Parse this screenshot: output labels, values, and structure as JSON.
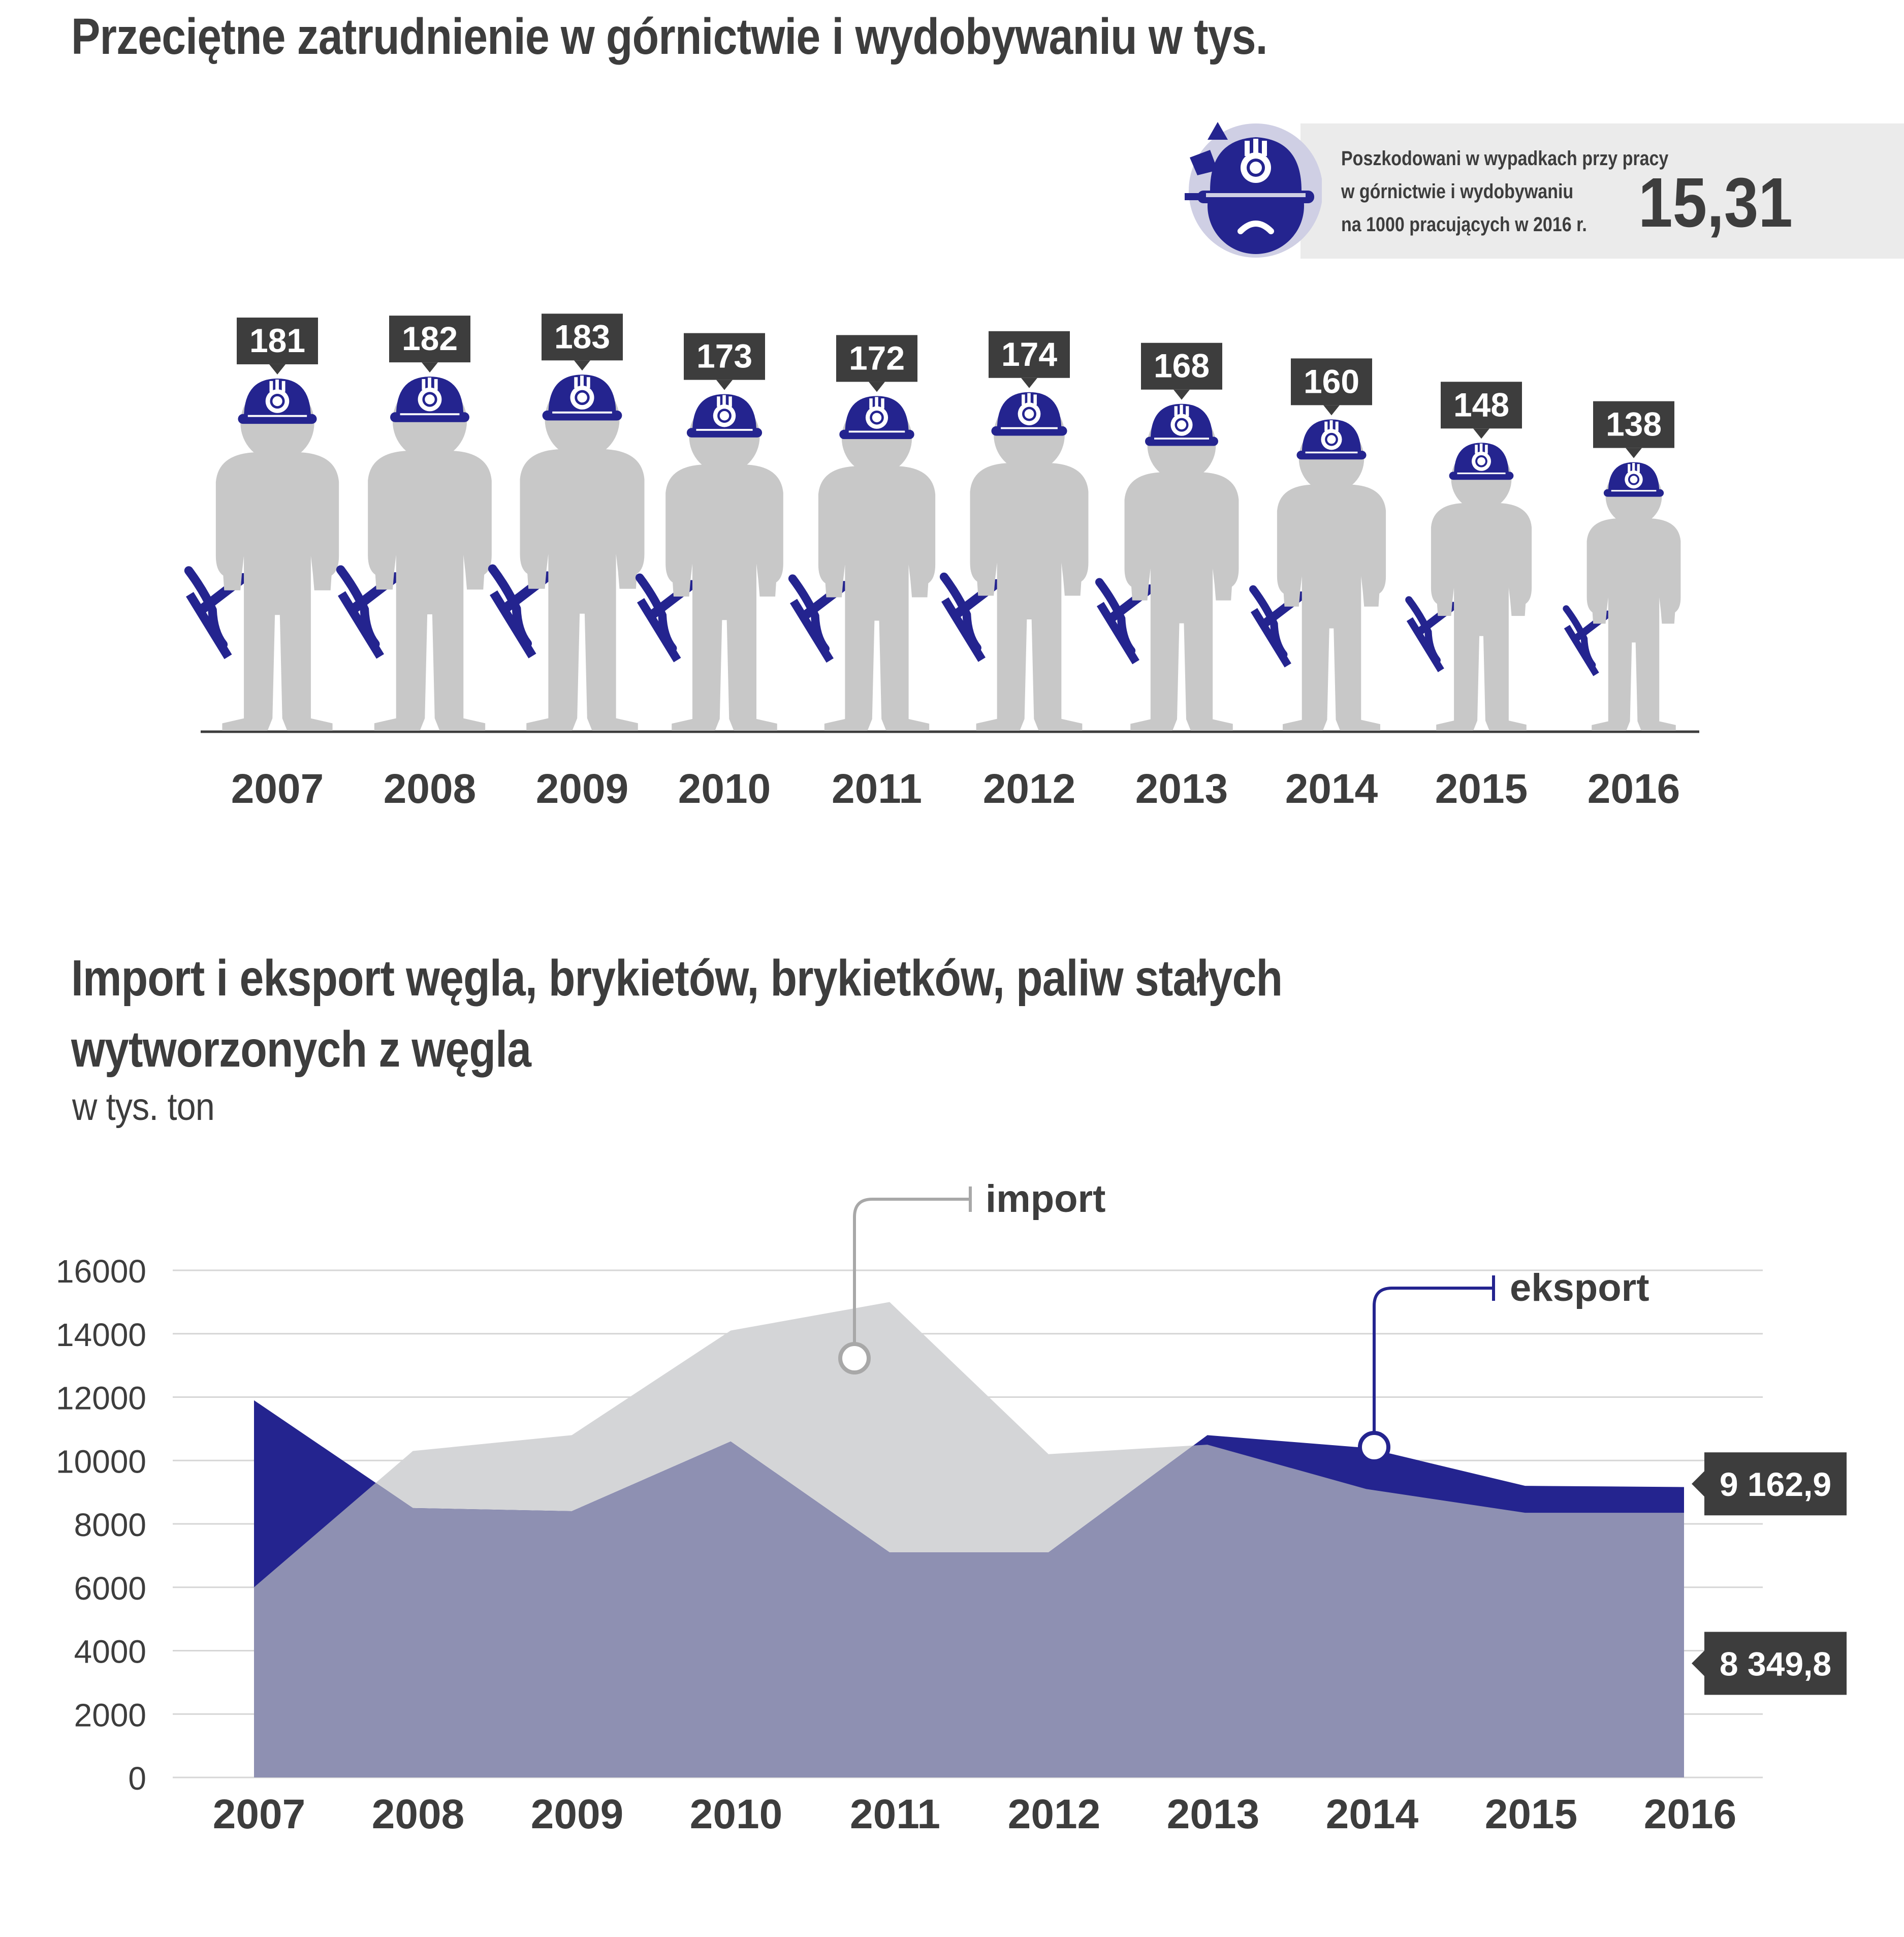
{
  "header": {
    "title": "Przeciętne zatrudnienie w górnictwie i wydobywaniu w tys."
  },
  "accident_box": {
    "lines": [
      "Poszkodowani w wypadkach przy pracy",
      "w górnictwie i wydobywaniu",
      "na 1000 pracujących w 2016 r."
    ],
    "value": "15,31",
    "icon": "sad-miner-icon"
  },
  "colors": {
    "navy": "#24248f",
    "figure_gray": "#c8c8c8",
    "label_dark": "#3d3d3d",
    "import_gray": "#d4d5d7",
    "overlap_lavender": "#8e90b2"
  },
  "section2": {
    "title_line1": "Import i eksport węgla, brykietów, brykietków, paliw stałych",
    "title_line2": "wytworzonych z węgla",
    "subtitle": "w tys. ton"
  },
  "chart_data": [
    {
      "type": "bar",
      "title": "Przeciętne zatrudnienie w górnictwie i wydobywaniu w tys.",
      "categories": [
        "2007",
        "2008",
        "2009",
        "2010",
        "2011",
        "2012",
        "2013",
        "2014",
        "2015",
        "2016"
      ],
      "values": [
        181,
        182,
        183,
        173,
        172,
        174,
        168,
        160,
        148,
        138
      ],
      "labels": [
        "181",
        "182",
        "183",
        "173",
        "172",
        "174",
        "168",
        "160",
        "148",
        "138"
      ]
    },
    {
      "type": "area",
      "title": "Import i eksport węgla, brykietów, brykietków, paliw stałych wytworzonych z węgla",
      "ylabel": "w tys. ton",
      "ylim": [
        0,
        16000
      ],
      "yticks": [
        0,
        2000,
        4000,
        6000,
        8000,
        10000,
        12000,
        14000,
        16000
      ],
      "categories": [
        "2007",
        "2008",
        "2009",
        "2010",
        "2011",
        "2012",
        "2013",
        "2014",
        "2015",
        "2016"
      ],
      "series": [
        {
          "name": "import",
          "values": [
            6000,
            10300,
            10800,
            14100,
            15000,
            10200,
            10500,
            9100,
            8350,
            8349.8
          ]
        },
        {
          "name": "eksport",
          "values": [
            11900,
            8500,
            8400,
            10600,
            7100,
            7100,
            10800,
            10400,
            9200,
            9162.9
          ]
        }
      ],
      "end_labels": {
        "eksport": "9 162,9",
        "import": "8 349,8"
      },
      "legend": {
        "import": "import",
        "eksport": "eksport"
      }
    }
  ]
}
